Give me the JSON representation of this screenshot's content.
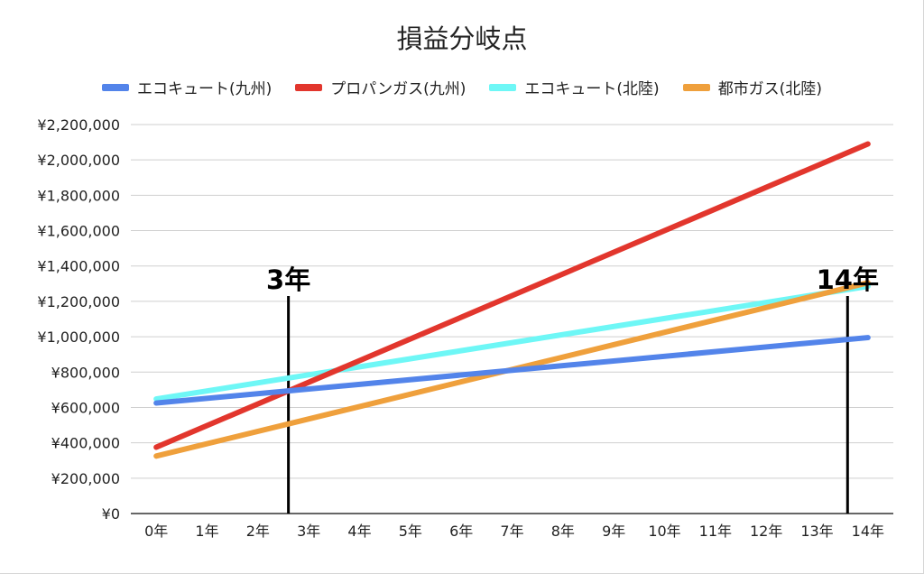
{
  "chart_data": {
    "type": "line",
    "title": "損益分岐点",
    "xlabel": "",
    "ylabel": "",
    "categories": [
      "0年",
      "1年",
      "2年",
      "3年",
      "4年",
      "5年",
      "6年",
      "7年",
      "8年",
      "9年",
      "10年",
      "11年",
      "12年",
      "13年",
      "14年"
    ],
    "ylim": [
      0,
      2200000
    ],
    "yticks": [
      {
        "value": 0,
        "label": "¥0"
      },
      {
        "value": 200000,
        "label": "¥200,000"
      },
      {
        "value": 400000,
        "label": "¥400,000"
      },
      {
        "value": 600000,
        "label": "¥600,000"
      },
      {
        "value": 800000,
        "label": "¥800,000"
      },
      {
        "value": 1000000,
        "label": "¥1,000,000"
      },
      {
        "value": 1200000,
        "label": "¥1,200,000"
      },
      {
        "value": 1400000,
        "label": "¥1,400,000"
      },
      {
        "value": 1600000,
        "label": "¥1,600,000"
      },
      {
        "value": 1800000,
        "label": "¥1,800,000"
      },
      {
        "value": 2000000,
        "label": "¥2,000,000"
      },
      {
        "value": 2200000,
        "label": "¥2,200,000"
      }
    ],
    "grid": true,
    "legend_position": "top",
    "series": [
      {
        "name": "エコキュート(九州)",
        "color": "#5384ea",
        "start": 625000,
        "end": 995000
      },
      {
        "name": "プロパンガス(九州)",
        "color": "#e2362d",
        "start": 375000,
        "end": 2090000
      },
      {
        "name": "エコキュート(北陸)",
        "color": "#6ef7f6",
        "start": 648000,
        "end": 1285000
      },
      {
        "name": "都市ガス(北陸)",
        "color": "#efa03c",
        "start": 325000,
        "end": 1305000
      }
    ],
    "annotations": [
      {
        "text": "3年",
        "x": 2.6,
        "y_top": 1230000
      },
      {
        "text": "14年",
        "x": 13.6,
        "y_top": 1230000
      }
    ]
  }
}
